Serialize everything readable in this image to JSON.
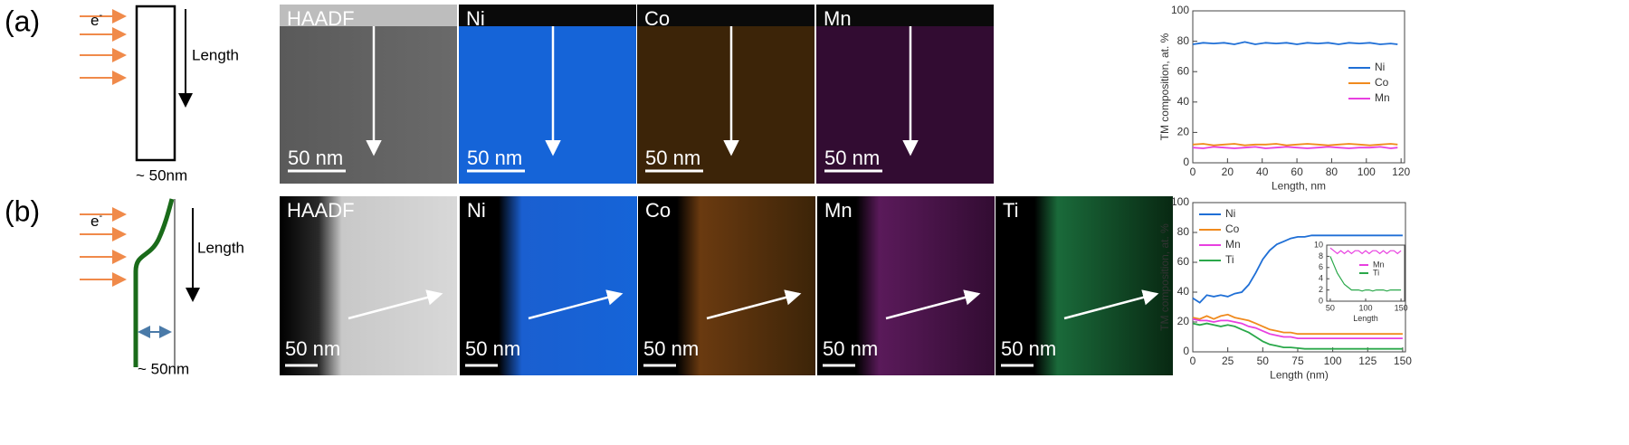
{
  "panels": [
    {
      "label": "(a)",
      "diagram": {
        "electron": "e",
        "charge": "-",
        "length": "Length",
        "width": "~ 50nm"
      },
      "images": [
        {
          "label": "HAADF",
          "scale": "50 nm"
        },
        {
          "label": "Ni",
          "scale": "50 nm"
        },
        {
          "label": "Co",
          "scale": "50 nm"
        },
        {
          "label": "Mn",
          "scale": "50 nm"
        }
      ]
    },
    {
      "label": "(b)",
      "diagram": {
        "electron": "e",
        "charge": "-",
        "length": "Length",
        "width": "~ 50nm"
      },
      "images": [
        {
          "label": "HAADF",
          "scale": "50 nm"
        },
        {
          "label": "Ni",
          "scale": "50 nm"
        },
        {
          "label": "Co",
          "scale": "50 nm"
        },
        {
          "label": "Mn",
          "scale": "50 nm"
        },
        {
          "label": "Ti",
          "scale": "50 nm"
        }
      ]
    }
  ],
  "chart_data": [
    {
      "type": "line",
      "xlabel": "Length, nm",
      "ylabel": "TM composition, at. %",
      "xlim": [
        0,
        122
      ],
      "ylim": [
        0,
        100
      ],
      "xticks": [
        0,
        20,
        40,
        60,
        80,
        100,
        120
      ],
      "yticks": [
        0,
        20,
        40,
        60,
        80,
        100
      ],
      "legend": "right",
      "x": [
        0,
        6,
        12,
        18,
        24,
        30,
        36,
        42,
        48,
        54,
        60,
        66,
        72,
        78,
        84,
        90,
        96,
        102,
        108,
        114,
        118
      ],
      "series": [
        {
          "name": "Ni",
          "color": "#1f6fd6",
          "values": [
            78,
            79,
            78.5,
            79,
            78,
            79.5,
            78,
            79,
            78.5,
            79,
            78,
            79,
            78.5,
            79,
            78,
            79,
            78.5,
            79,
            78,
            78.5,
            78
          ]
        },
        {
          "name": "Co",
          "color": "#f08a1d",
          "values": [
            12,
            12.5,
            11.5,
            12,
            12.5,
            11.5,
            12,
            12,
            12.5,
            11.5,
            12,
            12.5,
            12,
            11.5,
            12,
            12.5,
            12,
            11.5,
            12,
            12.5,
            12
          ]
        },
        {
          "name": "Mn",
          "color": "#e83fe0",
          "values": [
            10,
            9.5,
            10.5,
            10,
            9.5,
            10,
            10.5,
            9.5,
            10,
            10.5,
            10,
            9.5,
            10,
            10.5,
            10,
            9.5,
            10,
            10,
            10.5,
            9.5,
            10
          ]
        }
      ]
    },
    {
      "type": "line",
      "xlabel": "Length (nm)",
      "ylabel": "TM composition, at. %",
      "xlim": [
        0,
        152
      ],
      "ylim": [
        0,
        100
      ],
      "xticks": [
        0,
        25,
        50,
        75,
        100,
        125,
        150
      ],
      "yticks": [
        0,
        20,
        40,
        60,
        80,
        100
      ],
      "legend": "upper left",
      "x": [
        0,
        5,
        10,
        15,
        20,
        25,
        30,
        35,
        40,
        45,
        50,
        55,
        60,
        65,
        70,
        75,
        80,
        85,
        90,
        95,
        100,
        105,
        110,
        115,
        120,
        125,
        130,
        135,
        140,
        145,
        150
      ],
      "series": [
        {
          "name": "Ni",
          "color": "#1f6fd6",
          "values": [
            36,
            33,
            38,
            37,
            38,
            37,
            39,
            40,
            45,
            53,
            62,
            68,
            72,
            74,
            76,
            77,
            77,
            78,
            78,
            78,
            78,
            78,
            78,
            78,
            78,
            78,
            78,
            78,
            78,
            78,
            78
          ]
        },
        {
          "name": "Co",
          "color": "#f08a1d",
          "values": [
            23,
            22,
            24,
            22,
            24,
            25,
            23,
            22,
            21,
            19,
            17,
            15,
            14,
            13,
            13,
            12,
            12,
            12,
            12,
            12,
            12,
            12,
            12,
            12,
            12,
            12,
            12,
            12,
            12,
            12,
            12
          ]
        },
        {
          "name": "Mn",
          "color": "#e83fe0",
          "values": [
            22,
            21,
            21,
            20,
            21,
            21,
            20,
            19,
            17,
            16,
            14,
            12,
            11,
            10,
            10,
            9,
            9,
            9,
            9,
            9,
            9,
            9,
            9,
            9,
            9,
            9,
            9,
            9,
            9,
            9,
            9
          ]
        },
        {
          "name": "Ti",
          "color": "#2aa84a",
          "values": [
            19,
            18,
            19,
            18,
            17,
            18,
            17,
            15,
            13,
            10,
            7,
            5,
            4,
            3,
            3,
            2.5,
            2,
            2,
            2,
            2,
            2,
            2,
            2,
            2,
            2,
            2,
            2,
            2,
            2,
            2,
            2
          ]
        }
      ]
    },
    {
      "type": "line",
      "xlabel": "Length",
      "xlim": [
        45,
        155
      ],
      "ylim": [
        0,
        10
      ],
      "xticks": [
        50,
        100,
        150
      ],
      "yticks": [
        0,
        2,
        4,
        6,
        8,
        10
      ],
      "legend": "right",
      "x": [
        50,
        55,
        60,
        65,
        70,
        75,
        80,
        85,
        90,
        95,
        100,
        105,
        110,
        115,
        120,
        125,
        130,
        135,
        140,
        145,
        150
      ],
      "series": [
        {
          "name": "Mn",
          "color": "#e83fe0",
          "values": [
            9.5,
            9,
            8.5,
            9,
            8.5,
            9,
            8.5,
            9,
            9,
            8.5,
            9,
            8.5,
            9,
            9,
            8.5,
            9,
            8.5,
            9,
            9,
            8.5,
            9
          ]
        },
        {
          "name": "Ti",
          "color": "#2aa84a",
          "values": [
            8,
            6.5,
            5,
            4,
            3,
            2.5,
            2,
            2,
            2,
            1.8,
            2,
            2,
            1.8,
            2,
            2,
            2,
            1.8,
            2,
            2,
            2,
            2
          ]
        }
      ]
    }
  ]
}
